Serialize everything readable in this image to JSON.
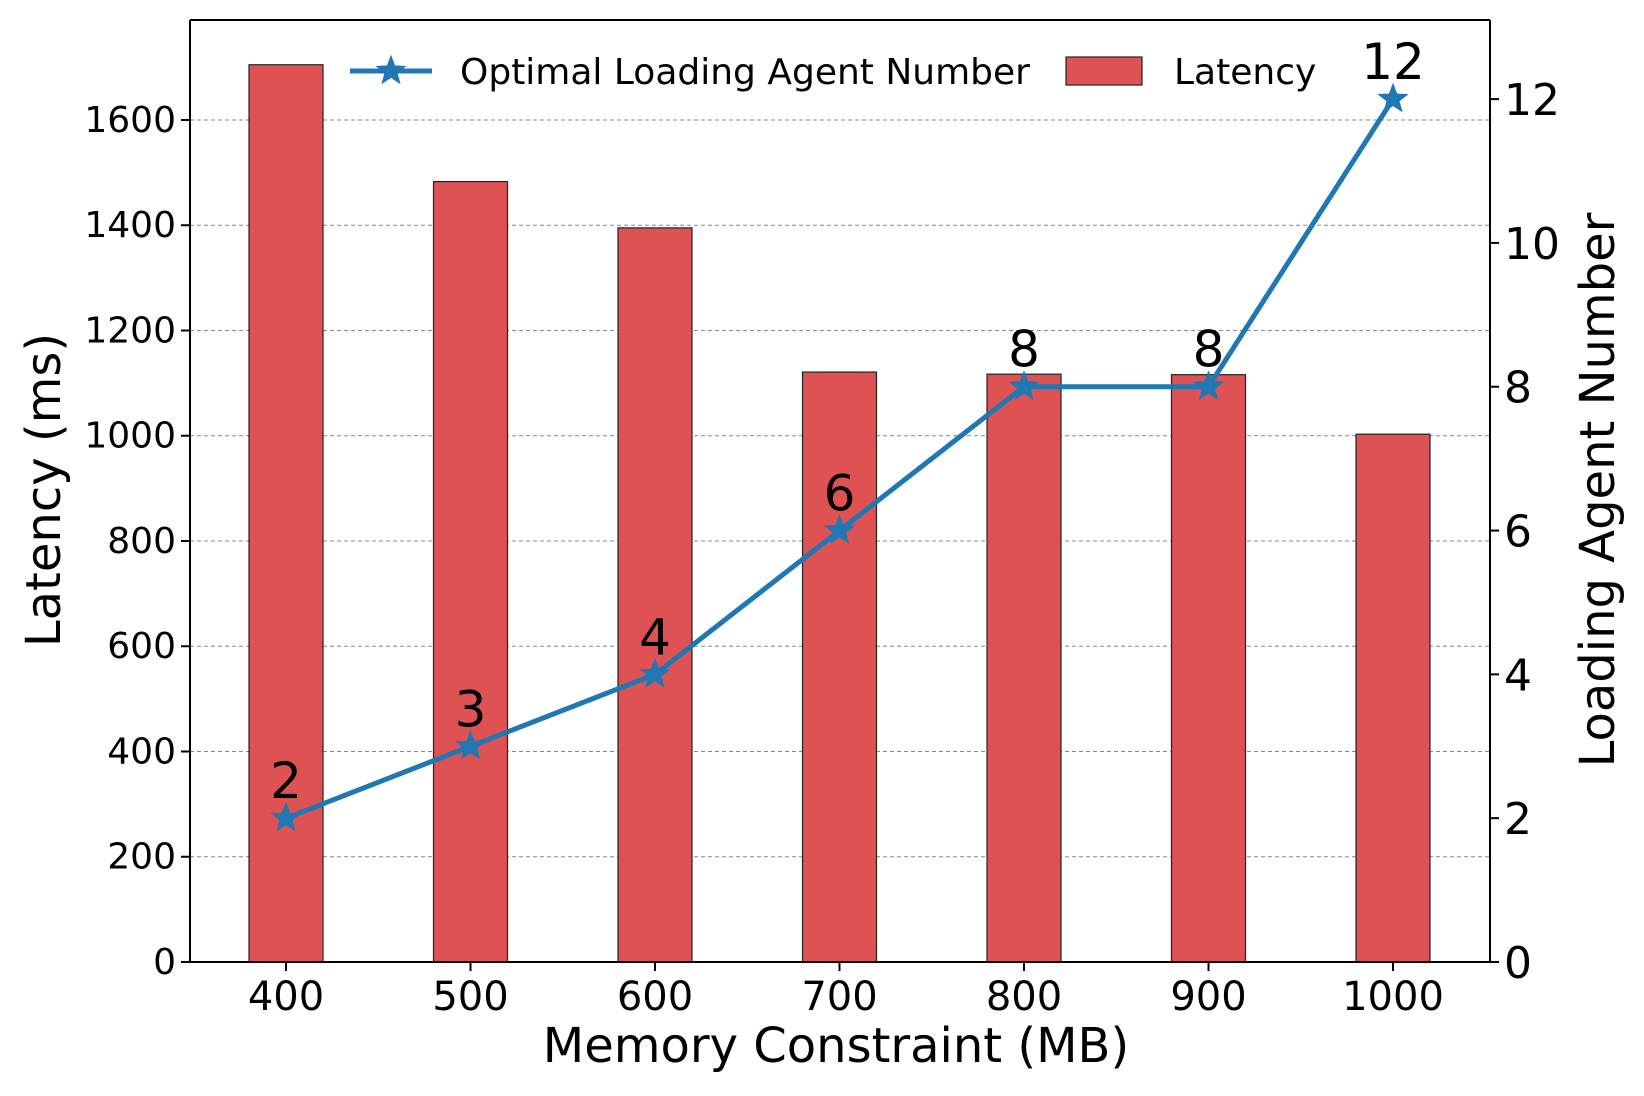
{
  "chart_data": {
    "type": "bar+line",
    "categories": [
      "400",
      "500",
      "600",
      "700",
      "800",
      "900",
      "1000"
    ],
    "xlabel": "Memory Constraint (MB)",
    "ylabel": "Latency (ms)",
    "y2label": "Loading Agent Number",
    "ylim": [
      0,
      1790
    ],
    "y2lim": [
      0,
      13.1
    ],
    "yticks": [
      0,
      200,
      400,
      600,
      800,
      1000,
      1200,
      1400,
      1600
    ],
    "y2ticks": [
      0,
      2,
      4,
      6,
      8,
      10,
      12
    ],
    "grid": true,
    "legend_position": "top-center",
    "series": [
      {
        "name": "Latency",
        "type": "bar",
        "axis": "left",
        "color": "#de5254",
        "values": [
          1705,
          1483,
          1395,
          1121,
          1117,
          1116,
          1003
        ]
      },
      {
        "name": "Optimal Loading Agent Number",
        "type": "line",
        "axis": "right",
        "marker": "star",
        "color": "#1f77b4",
        "values": [
          2,
          3,
          4,
          6,
          8,
          8,
          12
        ],
        "labels": [
          "2",
          "3",
          "4",
          "6",
          "8",
          "8",
          "12"
        ]
      }
    ]
  }
}
